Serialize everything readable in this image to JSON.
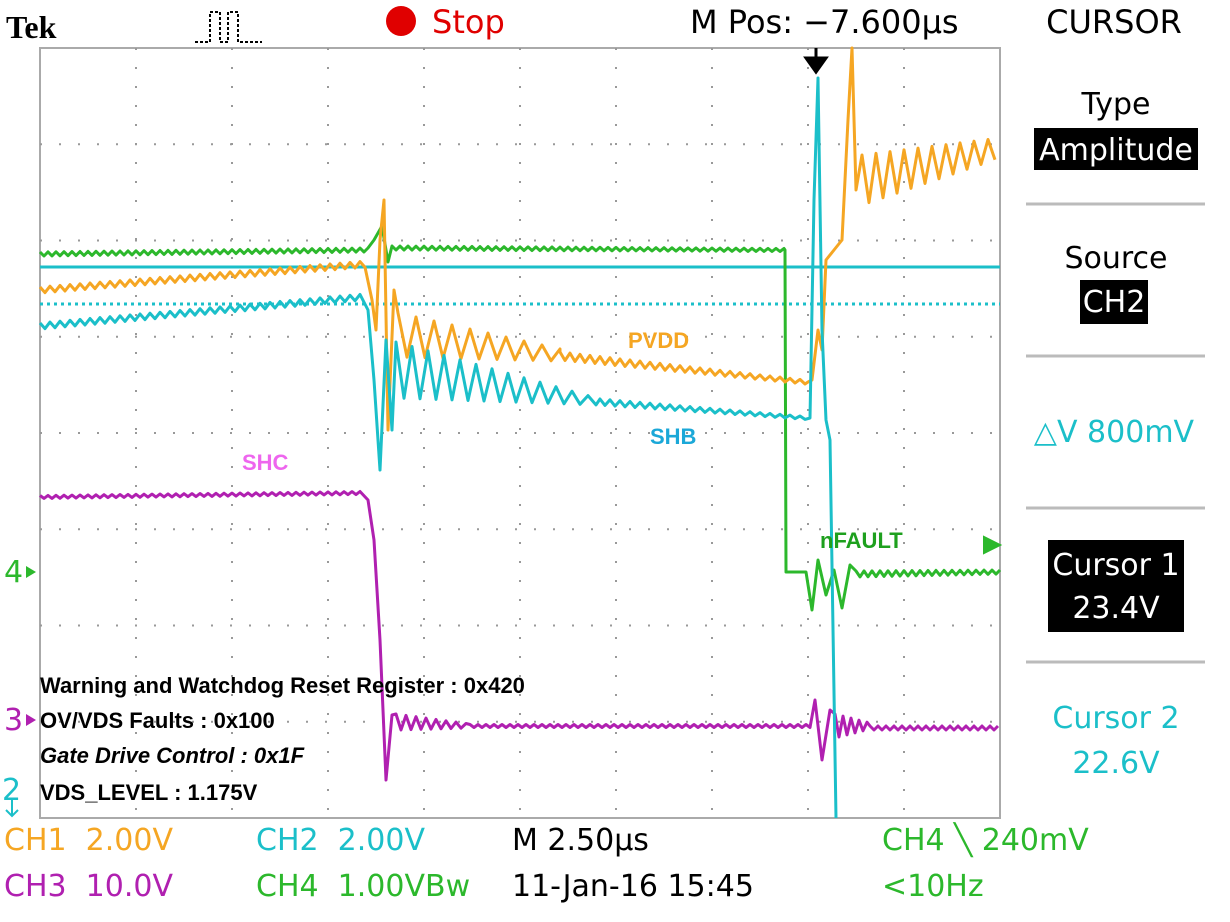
{
  "header": {
    "brand": "Tek",
    "state": "Stop",
    "position": "M Pos: −7.600µs",
    "menu": "CURSOR"
  },
  "side_menu": {
    "type_label": "Type",
    "type_value": "Amplitude",
    "source_label": "Source",
    "source_value": "CH2",
    "delta": "△V 800mV",
    "cursor1_label": "Cursor 1",
    "cursor1_value": "23.4V",
    "cursor2_label": "Cursor 2",
    "cursor2_value": "22.6V"
  },
  "traces": {
    "pvdd": "PVDD",
    "shb": "SHB",
    "shc": "SHC",
    "nfault": "nFAULT"
  },
  "markers": {
    "ch4": "4",
    "ch3": "3",
    "ch2": "2"
  },
  "annotations": [
    "Warning and Watchdog Reset Register : 0x420",
    "OV/VDS Faults : 0x100",
    "Gate Drive Control : 0x1F",
    "VDS_LEVEL : 1.175V"
  ],
  "footer": {
    "ch1": "CH1  2.00V",
    "ch2": "CH2  2.00V",
    "timebase": "M 2.50µs",
    "trigger": "CH4 ╲ 240mV",
    "ch3": "CH3  10.0V",
    "ch4": "CH4  1.00VBw",
    "date": "11-Jan-16 15:45",
    "freq": "<10Hz"
  }
}
